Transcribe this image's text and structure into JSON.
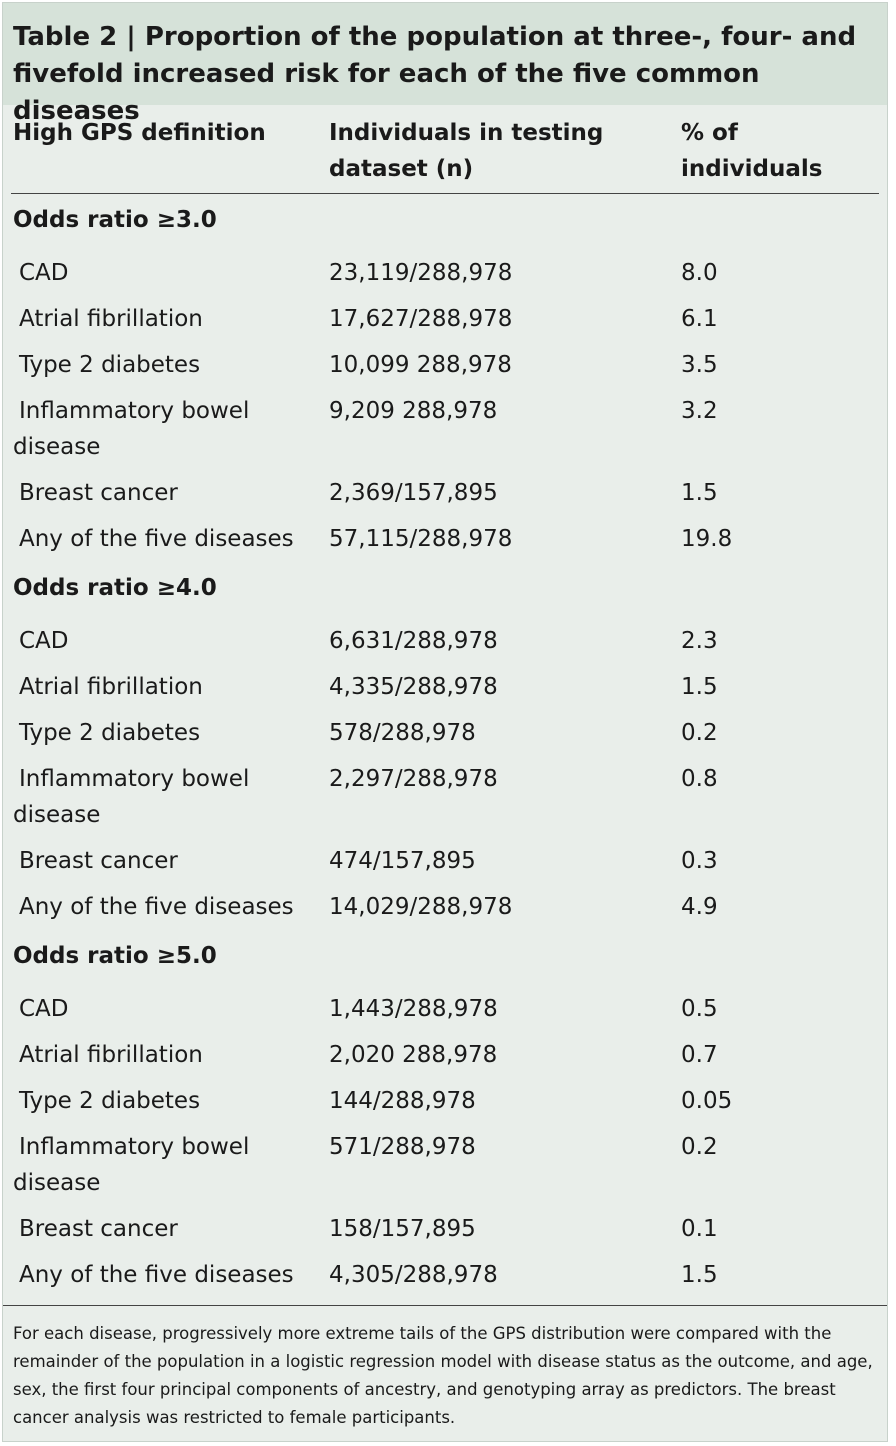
{
  "title": "Table 2 | Proportion of the population at three-, four- and fivefold increased risk for each of the five common diseases",
  "columns": [
    "High GPS definition",
    "Individuals in testing dataset (n)",
    "% of individuals"
  ],
  "sections": [
    {
      "heading": "Odds ratio ≥3.0",
      "rows": [
        [
          "CAD",
          "23,119/288,978",
          "8.0"
        ],
        [
          "Atrial fibrillation",
          "17,627/288,978",
          "6.1"
        ],
        [
          "Type 2 diabetes",
          "10,099 288,978",
          "3.5"
        ],
        [
          "Inflammatory bowel disease",
          "9,209 288,978",
          "3.2"
        ],
        [
          "Breast cancer",
          "2,369/157,895",
          "1.5"
        ],
        [
          "Any of the five diseases",
          "57,115/288,978",
          "19.8"
        ]
      ]
    },
    {
      "heading": "Odds ratio ≥4.0",
      "rows": [
        [
          "CAD",
          "6,631/288,978",
          "2.3"
        ],
        [
          "Atrial fibrillation",
          "4,335/288,978",
          "1.5"
        ],
        [
          "Type 2 diabetes",
          "578/288,978",
          "0.2"
        ],
        [
          "Inflammatory bowel disease",
          "2,297/288,978",
          "0.8"
        ],
        [
          "Breast cancer",
          "474/157,895",
          "0.3"
        ],
        [
          "Any of the five diseases",
          "14,029/288,978",
          "4.9"
        ]
      ]
    },
    {
      "heading": "Odds ratio ≥5.0",
      "rows": [
        [
          "CAD",
          "1,443/288,978",
          "0.5"
        ],
        [
          "Atrial fibrillation",
          "2,020 288,978",
          "0.7"
        ],
        [
          "Type 2 diabetes",
          "144/288,978",
          "0.05"
        ],
        [
          "Inflammatory bowel disease",
          "571/288,978",
          "0.2"
        ],
        [
          "Breast cancer",
          "158/157,895",
          "0.1"
        ],
        [
          "Any of the five diseases",
          "4,305/288,978",
          "1.5"
        ]
      ]
    }
  ],
  "footnote": "For each disease, progressively more extreme tails of the GPS distribution were compared with the remainder of the population in a logistic regression model with disease status as the outcome, and age, sex, the first four principal components of ancestry, and genotyping array as predictors. The breast cancer analysis was restricted to female participants."
}
